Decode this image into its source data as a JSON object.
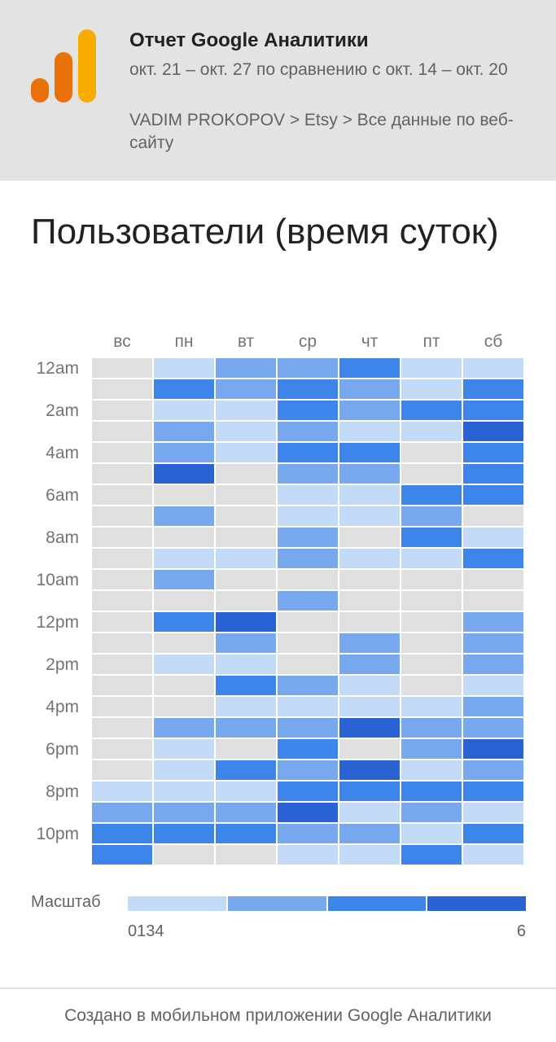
{
  "header": {
    "title": "Отчет Google Аналитики",
    "date_range": "окт. 21 – окт. 27 по сравнению с окт. 14 – окт. 20",
    "path": "VADIM PROKOPOV > Etsy > Все данные по веб-сайту",
    "logo_icon": "google-analytics-logo-icon"
  },
  "report": {
    "title": "Пользователи (время суток)"
  },
  "colors": {
    "empty": "#e0e0e0",
    "levels": [
      "#c3daf6",
      "#78a9ef",
      "#3d85ea",
      "#2a62d3"
    ]
  },
  "chart_data": {
    "type": "heatmap",
    "columns": [
      "вс",
      "пн",
      "вт",
      "ср",
      "чт",
      "пт",
      "сб"
    ],
    "row_labels": [
      "12am",
      "",
      "2am",
      "",
      "4am",
      "",
      "6am",
      "",
      "8am",
      "",
      "10am",
      "",
      "12pm",
      "",
      "2pm",
      "",
      "4pm",
      "",
      "6pm",
      "",
      "8pm",
      "",
      "10pm",
      ""
    ],
    "levels": [
      [
        0,
        1,
        2,
        2,
        3,
        1,
        1
      ],
      [
        0,
        3,
        2,
        3,
        2,
        1,
        3
      ],
      [
        0,
        1,
        1,
        3,
        2,
        3,
        3
      ],
      [
        0,
        2,
        1,
        2,
        1,
        1,
        4
      ],
      [
        0,
        2,
        1,
        3,
        3,
        0,
        3
      ],
      [
        0,
        4,
        0,
        2,
        2,
        0,
        3
      ],
      [
        0,
        0,
        0,
        1,
        1,
        3,
        3
      ],
      [
        0,
        2,
        0,
        1,
        1,
        2,
        0
      ],
      [
        0,
        0,
        0,
        2,
        0,
        3,
        1
      ],
      [
        0,
        1,
        1,
        2,
        1,
        1,
        3
      ],
      [
        0,
        2,
        0,
        0,
        0,
        0,
        0
      ],
      [
        0,
        0,
        0,
        2,
        0,
        0,
        0
      ],
      [
        0,
        3,
        4,
        0,
        0,
        0,
        2
      ],
      [
        0,
        0,
        2,
        0,
        2,
        0,
        2
      ],
      [
        0,
        1,
        1,
        0,
        2,
        0,
        2
      ],
      [
        0,
        0,
        3,
        2,
        1,
        0,
        1
      ],
      [
        0,
        0,
        1,
        1,
        1,
        1,
        2
      ],
      [
        0,
        2,
        2,
        2,
        4,
        2,
        2
      ],
      [
        0,
        1,
        0,
        3,
        0,
        2,
        4
      ],
      [
        0,
        1,
        3,
        2,
        4,
        1,
        2
      ],
      [
        1,
        1,
        1,
        3,
        3,
        3,
        3
      ],
      [
        2,
        2,
        2,
        4,
        1,
        2,
        1
      ],
      [
        3,
        3,
        3,
        2,
        2,
        1,
        3
      ],
      [
        3,
        0,
        0,
        1,
        1,
        3,
        1
      ]
    ],
    "scale": {
      "label": "Масштаб",
      "min_label": "0134",
      "max_label": "6"
    }
  },
  "footer": {
    "text": "Создано в мобильном приложении Google Аналитики"
  }
}
